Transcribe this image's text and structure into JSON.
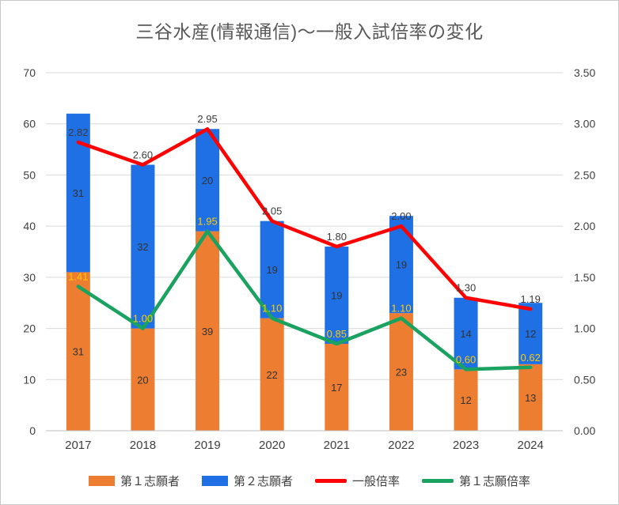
{
  "chart_data": {
    "type": "combo-stacked-bar-line",
    "title": "三谷水産(情報通信)〜一般入試倍率の変化",
    "categories": [
      "2017",
      "2018",
      "2019",
      "2020",
      "2021",
      "2022",
      "2023",
      "2024"
    ],
    "bar_series": [
      {
        "name": "第１志願者",
        "color": "#ED7D31",
        "values": [
          31,
          20,
          39,
          22,
          17,
          23,
          12,
          13
        ]
      },
      {
        "name": "第２志願者",
        "color": "#1F6FE5",
        "values": [
          31,
          32,
          20,
          19,
          19,
          19,
          14,
          12
        ]
      }
    ],
    "line_series": [
      {
        "name": "一般倍率",
        "color": "#FF0000",
        "axis": "right",
        "label_color": "#3B3B3B",
        "values": [
          2.82,
          2.6,
          2.95,
          2.05,
          1.8,
          2.0,
          1.3,
          1.19
        ]
      },
      {
        "name": "第１志願倍率",
        "color": "#1AA260",
        "axis": "right",
        "label_color": "#FFCC00",
        "values": [
          1.41,
          1.0,
          1.95,
          1.1,
          0.85,
          1.1,
          0.6,
          0.62
        ]
      }
    ],
    "left_axis": {
      "min": 0,
      "max": 70,
      "step": 10
    },
    "right_axis": {
      "min": 0,
      "max": 3.5,
      "step": 0.5,
      "decimals": 2
    },
    "grid": true,
    "legend_position": "bottom",
    "colors": {
      "title": "#595959",
      "axis_text": "#404040",
      "grid": "#D9D9D9",
      "axis_line": "#BFBFBF",
      "bar_label": "#333333"
    }
  }
}
